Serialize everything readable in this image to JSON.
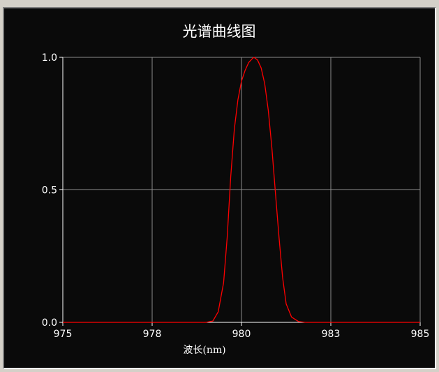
{
  "chart_data": {
    "type": "line",
    "title": "光谱曲线图",
    "xlabel": "波长(nm)",
    "ylabel": "",
    "xlim": [
      975,
      985
    ],
    "ylim": [
      0,
      1
    ],
    "grid": true,
    "x_ticks": [
      975,
      977.5,
      980,
      982.5,
      985
    ],
    "x_tick_labels": [
      "975",
      "978",
      "980",
      "983",
      "985"
    ],
    "y_ticks": [
      0,
      0.5,
      1
    ],
    "y_tick_labels": [
      "0.0",
      "0.5",
      "1.0"
    ],
    "series": [
      {
        "color": "#ff0000",
        "x": [
          975,
          979.0,
          979.2,
          979.35,
          979.5,
          979.6,
          979.7,
          979.8,
          979.9,
          980.0,
          980.1,
          980.2,
          980.3,
          980.35,
          980.45,
          980.55,
          980.65,
          980.75,
          980.85,
          980.95,
          981.05,
          981.15,
          981.25,
          981.4,
          981.6,
          981.8,
          985
        ],
        "y": [
          0,
          0,
          0.005,
          0.04,
          0.15,
          0.32,
          0.55,
          0.73,
          0.84,
          0.91,
          0.95,
          0.98,
          0.995,
          1.0,
          0.99,
          0.96,
          0.9,
          0.8,
          0.66,
          0.49,
          0.32,
          0.17,
          0.07,
          0.02,
          0.003,
          0,
          0
        ]
      }
    ]
  },
  "colors": {
    "background": "#0a0a0a",
    "grid": "#8c8c8c",
    "axis": "#ffffff",
    "text": "#ffffff",
    "series": "#ff0000"
  }
}
